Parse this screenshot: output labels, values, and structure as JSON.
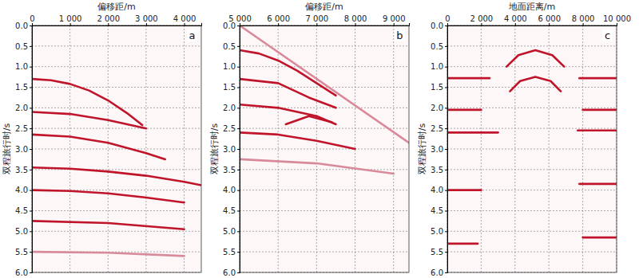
{
  "chart_data": [
    {
      "type": "line",
      "panel_label": "a",
      "xlabel": "偏移距/m",
      "ylabel": "双程旅行时/s",
      "grid": true,
      "xlim": [
        0,
        4450
      ],
      "ylim": [
        0,
        6
      ],
      "xticks": [
        0,
        {
          "value": 1000,
          "label": "1 000"
        },
        {
          "value": 2000,
          "label": "2 000"
        },
        {
          "value": 3000,
          "label": "3 000"
        },
        {
          "value": 4000,
          "label": "4 000"
        }
      ],
      "yticks": [
        {
          "value": 0,
          "label": "0.0"
        },
        {
          "value": 0.5,
          "label": "0.5"
        },
        {
          "value": 1,
          "label": "1.0"
        },
        {
          "value": 1.5,
          "label": "1.5"
        },
        {
          "value": 2,
          "label": "2.0"
        },
        {
          "value": 2.5,
          "label": "2.5"
        },
        {
          "value": 3,
          "label": "3.0"
        },
        {
          "value": 3.5,
          "label": "3.5"
        },
        {
          "value": 4,
          "label": "4.0"
        },
        {
          "value": 4.5,
          "label": "4.5"
        },
        {
          "value": 5,
          "label": "5.0"
        },
        {
          "value": 5.5,
          "label": "5.5"
        },
        {
          "value": 6,
          "label": "6.0"
        }
      ],
      "series": [
        {
          "color": "#c0142a",
          "x": [
            0,
            500,
            1000,
            1500,
            2000,
            2500,
            2900
          ],
          "values": [
            1.3,
            1.33,
            1.42,
            1.58,
            1.82,
            2.13,
            2.42
          ]
        },
        {
          "color": "#c0142a",
          "x": [
            0,
            1000,
            2000,
            2500,
            3000
          ],
          "values": [
            2.1,
            2.15,
            2.3,
            2.4,
            2.5
          ]
        },
        {
          "color": "#c0142a",
          "x": [
            0,
            1000,
            2000,
            3000,
            3500
          ],
          "values": [
            2.65,
            2.7,
            2.85,
            3.1,
            3.25
          ]
        },
        {
          "color": "#c0142a",
          "x": [
            0,
            1000,
            2000,
            3000,
            4000,
            4450
          ],
          "values": [
            3.45,
            3.48,
            3.55,
            3.65,
            3.8,
            3.88
          ]
        },
        {
          "color": "#c0142a",
          "x": [
            0,
            1000,
            2000,
            3000,
            4000
          ],
          "values": [
            4.0,
            4.02,
            4.08,
            4.18,
            4.3
          ]
        },
        {
          "color": "#c0142a",
          "x": [
            0,
            2000,
            4000
          ],
          "values": [
            4.75,
            4.8,
            4.95
          ]
        },
        {
          "color": "#d98a9a",
          "x": [
            0,
            2000,
            4000
          ],
          "values": [
            5.5,
            5.52,
            5.6
          ]
        }
      ]
    },
    {
      "type": "line",
      "panel_label": "b",
      "xlabel": "偏移距/m",
      "ylabel": "双程旅行时/s",
      "grid": true,
      "xlim": [
        5000,
        9400
      ],
      "ylim": [
        0,
        6
      ],
      "xticks": [
        {
          "value": 5000,
          "label": "5 000"
        },
        {
          "value": 6000,
          "label": "6 000"
        },
        {
          "value": 7000,
          "label": "7 000"
        },
        {
          "value": 8000,
          "label": "8 000"
        },
        {
          "value": 9000,
          "label": "9 000"
        }
      ],
      "yticks": [
        {
          "value": 0,
          "label": "0.0"
        },
        {
          "value": 0.5,
          "label": "0.5"
        },
        {
          "value": 1,
          "label": "1.0"
        },
        {
          "value": 1.5,
          "label": "1.5"
        },
        {
          "value": 2,
          "label": "2.0"
        },
        {
          "value": 2.5,
          "label": "2.5"
        },
        {
          "value": 3,
          "label": "3.0"
        },
        {
          "value": 3.5,
          "label": "3.5"
        },
        {
          "value": 4,
          "label": "4.0"
        },
        {
          "value": 4.5,
          "label": "4.5"
        },
        {
          "value": 5,
          "label": "5.0"
        },
        {
          "value": 5.5,
          "label": "5.5"
        },
        {
          "value": 6,
          "label": "6.0"
        }
      ],
      "series": [
        {
          "color": "#c0142a",
          "x": [
            5000,
            5500,
            6000,
            6500,
            7000,
            7500
          ],
          "values": [
            0.6,
            0.68,
            0.85,
            1.1,
            1.4,
            1.7
          ]
        },
        {
          "color": "#c0142a",
          "x": [
            5000,
            6000,
            6800,
            7500
          ],
          "values": [
            1.3,
            1.4,
            1.75,
            2.0
          ]
        },
        {
          "color": "#c0142a",
          "x": [
            5000,
            6000,
            7000,
            7500
          ],
          "values": [
            1.92,
            2.0,
            2.2,
            2.4
          ]
        },
        {
          "color": "#c0142a",
          "x": [
            6200,
            6800,
            7400
          ],
          "values": [
            2.4,
            2.2,
            2.35
          ]
        },
        {
          "color": "#c0142a",
          "x": [
            5000,
            6000,
            7000,
            8000
          ],
          "values": [
            2.6,
            2.65,
            2.8,
            3.0
          ]
        },
        {
          "color": "#d98a9a",
          "x": [
            5000,
            9400
          ],
          "values": [
            0.0,
            2.85
          ]
        },
        {
          "color": "#d98a9a",
          "x": [
            5000,
            7000,
            9000
          ],
          "values": [
            3.25,
            3.35,
            3.6
          ]
        }
      ]
    },
    {
      "type": "line",
      "panel_label": "c",
      "xlabel": "地面距离/m",
      "ylabel": "双程旅行时/s",
      "grid": true,
      "xlim": [
        0,
        10000
      ],
      "ylim": [
        0,
        6
      ],
      "xticks": [
        0,
        {
          "value": 2000,
          "label": "2 000"
        },
        {
          "value": 4000,
          "label": "4 000"
        },
        {
          "value": 6000,
          "label": "6 000"
        },
        {
          "value": 8000,
          "label": "8 000"
        },
        {
          "value": 10000,
          "label": "10 000"
        }
      ],
      "yticks": [
        {
          "value": 0,
          "label": "0.0"
        },
        {
          "value": 0.5,
          "label": "0.5"
        },
        {
          "value": 1,
          "label": "1.0"
        },
        {
          "value": 1.5,
          "label": "1.5"
        },
        {
          "value": 2,
          "label": "2.0"
        },
        {
          "value": 2.5,
          "label": "2.5"
        },
        {
          "value": 3,
          "label": "3.0"
        },
        {
          "value": 3.5,
          "label": "3.5"
        },
        {
          "value": 4,
          "label": "4.0"
        },
        {
          "value": 4.5,
          "label": "4.5"
        },
        {
          "value": 5,
          "label": "5.0"
        },
        {
          "value": 5.5,
          "label": "5.5"
        },
        {
          "value": 6,
          "label": "6.0"
        }
      ],
      "series": [
        {
          "color": "#c0142a",
          "x": [
            3500,
            4200,
            5200,
            6200,
            6900
          ],
          "values": [
            1.0,
            0.72,
            0.6,
            0.72,
            1.0
          ]
        },
        {
          "color": "#c0142a",
          "x": [
            0,
            2500,
            5000,
            7800,
            10000
          ],
          "values": [
            1.28,
            1.28,
            null,
            1.28,
            1.28
          ]
        },
        {
          "color": "#c0142a",
          "x": [
            3700,
            4300,
            5200,
            6100,
            6700
          ],
          "values": [
            1.6,
            1.35,
            1.25,
            1.35,
            1.6
          ]
        },
        {
          "color": "#c0142a",
          "x": [
            0,
            2000,
            5000,
            8000,
            10000
          ],
          "values": [
            2.05,
            2.05,
            null,
            2.05,
            2.05
          ]
        },
        {
          "color": "#c0142a",
          "x": [
            0,
            3000,
            5000,
            7700,
            10000
          ],
          "values": [
            2.6,
            2.6,
            null,
            2.55,
            2.55
          ]
        },
        {
          "color": "#c0142a",
          "x": [
            0,
            2000,
            5000,
            7800,
            10000
          ],
          "values": [
            4.0,
            4.0,
            null,
            3.85,
            3.85
          ]
        },
        {
          "color": "#c0142a",
          "x": [
            0,
            1800,
            5000,
            8000,
            10000
          ],
          "values": [
            5.3,
            5.3,
            null,
            5.15,
            5.15
          ]
        }
      ]
    }
  ]
}
